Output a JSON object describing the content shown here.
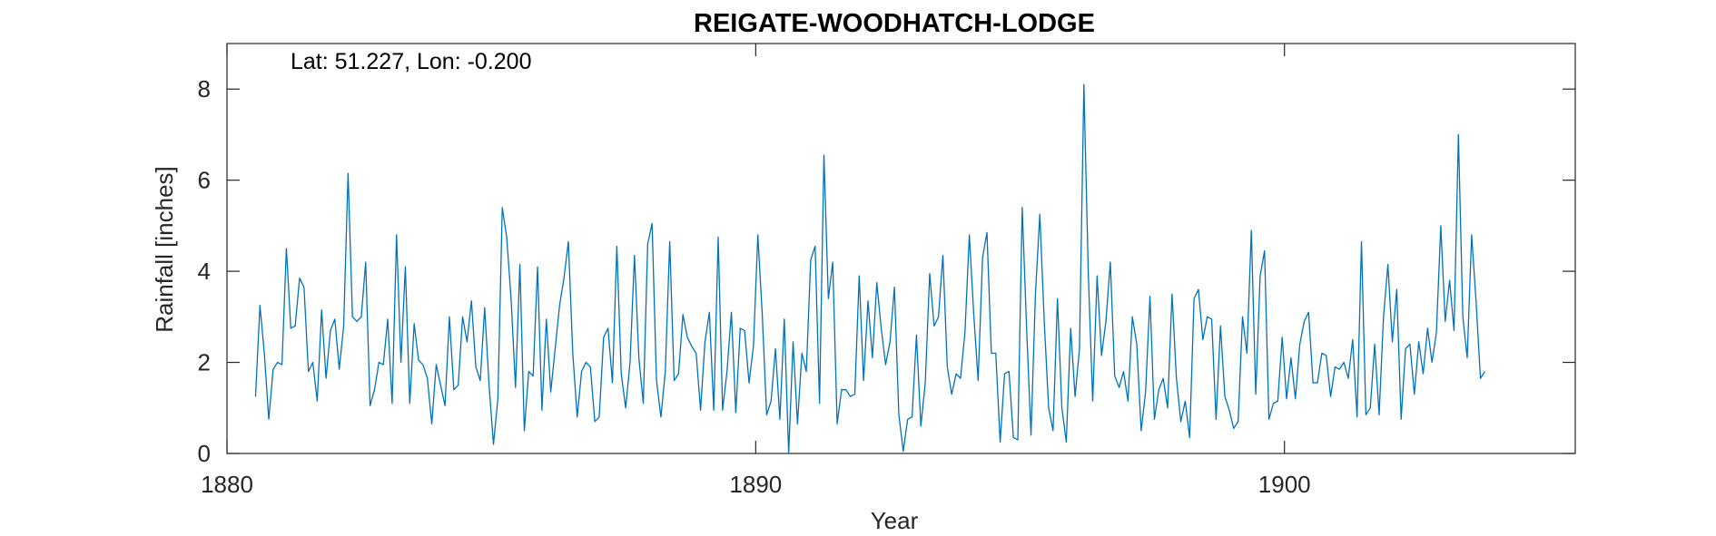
{
  "chart_data": {
    "type": "line",
    "title": "REIGATE-WOODHATCH-LODGE",
    "annotation": "Lat: 51.227, Lon: -0.200",
    "xlabel": "Year",
    "ylabel": "Rainfall [inches]",
    "xlim": [
      1880,
      1905.5
    ],
    "ylim": [
      0,
      9
    ],
    "xticks": [
      1880,
      1890,
      1900
    ],
    "yticks": [
      0,
      2,
      4,
      6,
      8
    ],
    "grid": false,
    "box": true,
    "line_color": "#0072BD",
    "series": [
      {
        "x_start": 1880.54,
        "x_step": 0.0833333,
        "values": [
          1.25,
          3.25,
          2.2,
          0.75,
          1.85,
          2.0,
          1.95,
          4.5,
          2.75,
          2.8,
          3.85,
          3.65,
          1.8,
          2.0,
          1.15,
          3.15,
          1.65,
          2.7,
          2.95,
          1.85,
          2.8,
          6.15,
          3.0,
          2.9,
          3.0,
          4.2,
          1.05,
          1.4,
          2.0,
          1.95,
          2.95,
          1.1,
          4.8,
          2.0,
          4.1,
          1.1,
          2.85,
          2.05,
          1.95,
          1.65,
          0.65,
          1.95,
          1.5,
          1.05,
          3.0,
          1.4,
          1.5,
          3.0,
          2.45,
          3.35,
          1.9,
          1.6,
          3.2,
          1.5,
          0.2,
          1.2,
          5.4,
          4.75,
          3.4,
          1.45,
          4.15,
          0.5,
          1.8,
          1.7,
          4.1,
          0.95,
          2.95,
          1.35,
          2.3,
          3.25,
          3.85,
          4.65,
          2.2,
          0.8,
          1.8,
          2.0,
          1.9,
          0.7,
          0.8,
          2.55,
          2.75,
          1.55,
          4.55,
          1.75,
          1.0,
          2.0,
          4.35,
          2.1,
          1.1,
          4.6,
          5.05,
          1.6,
          0.8,
          1.8,
          4.65,
          1.6,
          1.75,
          3.05,
          2.55,
          2.35,
          2.2,
          0.95,
          2.45,
          3.1,
          0.95,
          4.75,
          0.95,
          1.8,
          3.1,
          0.9,
          2.75,
          2.7,
          1.55,
          2.35,
          4.8,
          3.05,
          0.85,
          1.15,
          2.3,
          0.75,
          2.95,
          0.0,
          2.45,
          0.65,
          2.2,
          1.8,
          4.25,
          4.55,
          1.1,
          6.55,
          3.4,
          4.2,
          0.65,
          1.4,
          1.4,
          1.25,
          1.3,
          3.9,
          1.6,
          3.35,
          2.1,
          3.75,
          2.75,
          1.95,
          2.45,
          3.65,
          0.85,
          0.05,
          0.75,
          0.8,
          2.6,
          0.6,
          1.55,
          3.95,
          2.8,
          3.0,
          4.35,
          1.9,
          1.3,
          1.75,
          1.65,
          2.65,
          4.8,
          3.05,
          1.6,
          4.3,
          4.85,
          2.2,
          2.2,
          0.25,
          1.75,
          1.8,
          0.35,
          0.3,
          5.4,
          2.75,
          0.4,
          3.5,
          5.25,
          2.9,
          1.0,
          0.5,
          3.4,
          1.0,
          0.25,
          2.75,
          1.25,
          2.3,
          8.1,
          3.95,
          1.15,
          3.9,
          2.15,
          2.9,
          4.2,
          1.7,
          1.45,
          1.8,
          1.15,
          3.0,
          2.4,
          0.5,
          1.35,
          3.45,
          0.75,
          1.4,
          1.65,
          1.0,
          3.5,
          1.65,
          0.7,
          1.15,
          0.35,
          3.4,
          3.6,
          2.5,
          3.0,
          2.95,
          0.75,
          2.8,
          1.25,
          0.95,
          0.55,
          0.7,
          3.0,
          2.2,
          4.9,
          1.3,
          3.9,
          4.45,
          0.75,
          1.1,
          1.15,
          2.55,
          1.2,
          2.1,
          1.2,
          2.4,
          2.9,
          3.1,
          1.55,
          1.55,
          2.2,
          2.15,
          1.25,
          1.9,
          1.85,
          2.0,
          1.65,
          2.5,
          0.8,
          4.65,
          0.85,
          1.0,
          2.4,
          0.85,
          3.0,
          4.15,
          2.45,
          3.6,
          0.75,
          2.3,
          2.4,
          1.3,
          2.45,
          1.75,
          2.75,
          2.0,
          2.65,
          5.0,
          2.9,
          3.8,
          2.7,
          7.0,
          3.0,
          2.1,
          4.8,
          3.35,
          1.65,
          1.8
        ]
      }
    ]
  }
}
